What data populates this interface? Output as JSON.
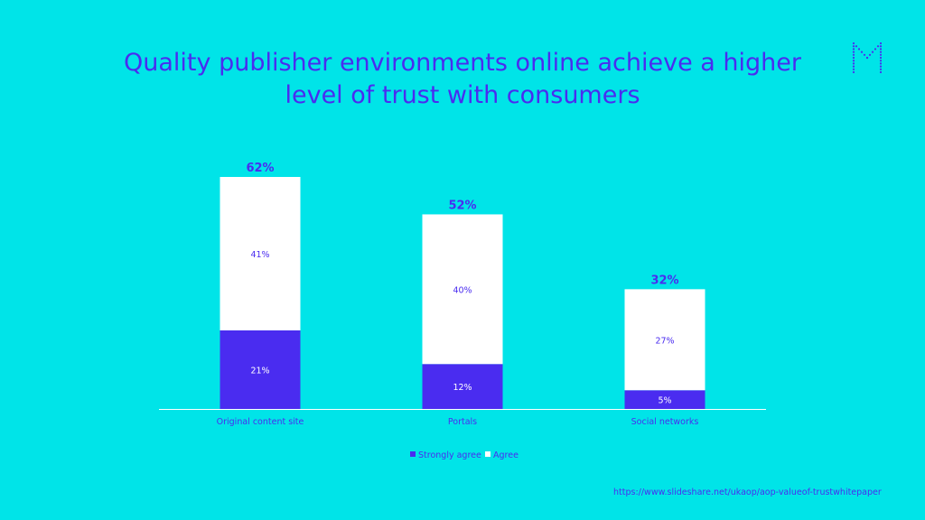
{
  "title": "Quality publisher environments online achieve a higher level of trust with consumers",
  "logo": {
    "icon": "m-logo-icon"
  },
  "source": "https://www.slideshare.net/ukaop/aop-valueof-trustwhitepaper",
  "colors": {
    "background": "#00e4e8",
    "strongly_agree": "#4a2cf0",
    "agree": "#ffffff",
    "text": "#4a2cf0"
  },
  "chart_data": {
    "type": "bar",
    "stacked": true,
    "categories": [
      "Original content site",
      "Portals",
      "Social networks"
    ],
    "series": [
      {
        "name": "Strongly agree",
        "values": [
          21,
          12,
          5
        ],
        "labels": [
          "21%",
          "12%",
          "5%"
        ]
      },
      {
        "name": "Agree",
        "values": [
          41,
          40,
          27
        ],
        "labels": [
          "41%",
          "40%",
          "27%"
        ]
      }
    ],
    "totals": [
      "62%",
      "52%",
      "32%"
    ],
    "ylim": [
      0,
      62
    ],
    "grid": false,
    "legend": "bottom"
  }
}
